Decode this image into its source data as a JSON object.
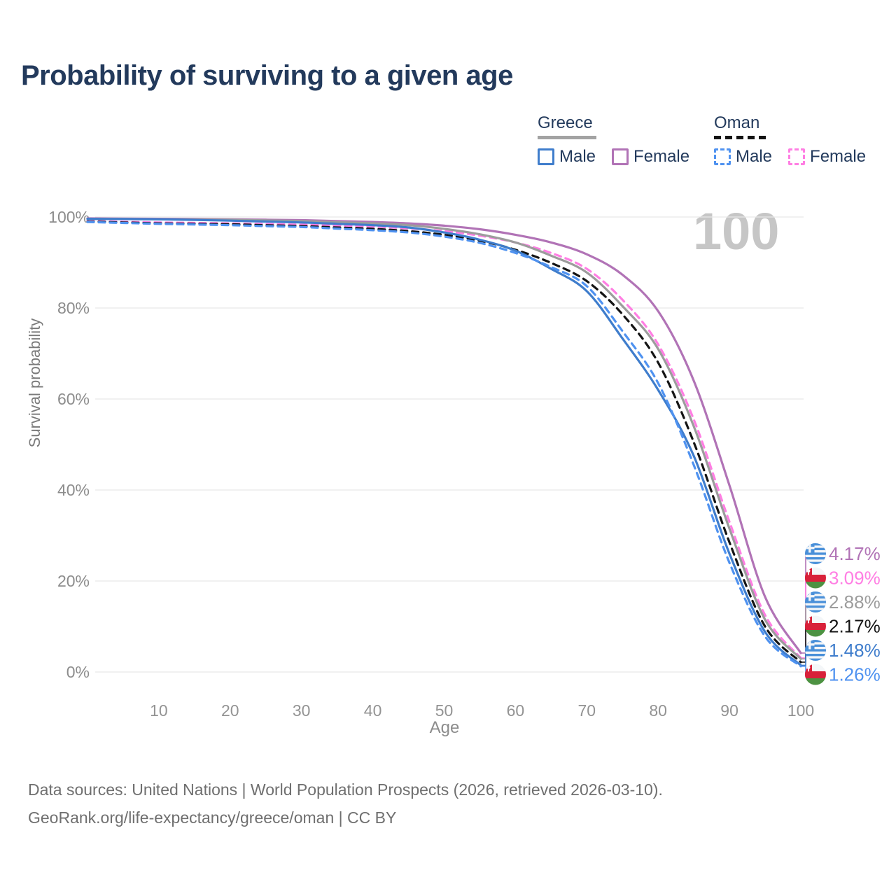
{
  "title": "Probability of surviving to a given age",
  "watermark": "100",
  "legend": {
    "groups": [
      {
        "id": "greece",
        "label": "Greece",
        "underline_style": "solid",
        "items": [
          {
            "series": "greece_male",
            "label": "Male"
          },
          {
            "series": "greece_female",
            "label": "Female"
          }
        ]
      },
      {
        "id": "oman",
        "label": "Oman",
        "underline_style": "dashed",
        "items": [
          {
            "series": "oman_male",
            "label": "Male"
          },
          {
            "series": "oman_female",
            "label": "Female"
          }
        ]
      }
    ]
  },
  "chart_data": {
    "type": "line",
    "title": "Probability of surviving to a given age",
    "xlabel": "Age",
    "ylabel": "Survival probability",
    "xlim": [
      0,
      100
    ],
    "ylim": [
      0,
      100
    ],
    "grid": "horizontal-only",
    "x_ticks": [
      10,
      20,
      30,
      40,
      50,
      60,
      70,
      80,
      90,
      100
    ],
    "y_ticks": [
      0,
      20,
      40,
      60,
      80,
      100
    ],
    "y_tick_suffix": "%",
    "legend_position": "top-right",
    "x": [
      0,
      5,
      10,
      15,
      20,
      25,
      30,
      35,
      40,
      45,
      50,
      55,
      60,
      65,
      70,
      75,
      80,
      85,
      90,
      95,
      100
    ],
    "series": [
      {
        "id": "greece_female",
        "name": "Greece Female",
        "country": "Greece",
        "sex": "Female",
        "color": "#b173b6",
        "dash": "solid",
        "flag": "greece",
        "end_label": "4.17%",
        "values": [
          99.7,
          99.65,
          99.6,
          99.55,
          99.5,
          99.4,
          99.3,
          99.1,
          98.9,
          98.6,
          98.1,
          97.3,
          96.1,
          94.4,
          91.8,
          87.3,
          79.3,
          64.0,
          41.0,
          16.5,
          4.17
        ]
      },
      {
        "id": "oman_female",
        "name": "Oman Female",
        "country": "Oman",
        "sex": "Female",
        "color": "#ff7ee3",
        "dash": "dashed",
        "flag": "oman",
        "end_label": "3.09%",
        "values": [
          99.1,
          98.95,
          98.8,
          98.7,
          98.6,
          98.45,
          98.3,
          98.1,
          97.9,
          97.5,
          96.9,
          95.9,
          94.4,
          92.1,
          88.6,
          81.8,
          72.0,
          55.5,
          33.0,
          12.5,
          3.09
        ]
      },
      {
        "id": "greece_total",
        "name": "Greece",
        "country": "Greece",
        "sex": "Both",
        "color": "#9c9c9c",
        "dash": "solid",
        "flag": "greece",
        "end_label": "2.88%",
        "values": [
          99.6,
          99.55,
          99.5,
          99.45,
          99.4,
          99.25,
          99.1,
          98.85,
          98.6,
          98.2,
          97.4,
          96.2,
          94.4,
          91.5,
          87.8,
          80.4,
          71.0,
          54.0,
          31.5,
          11.5,
          2.88
        ]
      },
      {
        "id": "oman_total",
        "name": "Oman",
        "country": "Oman",
        "sex": "Both",
        "color": "#141414",
        "dash": "dashed",
        "flag": "oman",
        "end_label": "2.17%",
        "values": [
          99.0,
          98.8,
          98.6,
          98.5,
          98.4,
          98.2,
          98.0,
          97.7,
          97.4,
          96.9,
          96.1,
          94.8,
          92.8,
          89.9,
          85.9,
          78.6,
          68.0,
          50.5,
          28.5,
          10.0,
          2.17
        ]
      },
      {
        "id": "greece_male",
        "name": "Greece Male",
        "country": "Greece",
        "sex": "Male",
        "color": "#3f7dcc",
        "dash": "solid",
        "flag": "greece",
        "end_label": "1.48%",
        "values": [
          99.6,
          99.55,
          99.5,
          99.35,
          99.2,
          99.0,
          98.8,
          98.5,
          98.2,
          97.7,
          96.6,
          95.0,
          92.6,
          88.6,
          83.7,
          73.3,
          62.0,
          47.5,
          26.0,
          8.8,
          1.48
        ]
      },
      {
        "id": "oman_male",
        "name": "Oman Male",
        "country": "Oman",
        "sex": "Male",
        "color": "#4f92f0",
        "dash": "dashed",
        "flag": "oman",
        "end_label": "1.26%",
        "values": [
          98.9,
          98.7,
          98.5,
          98.35,
          98.2,
          98.0,
          97.8,
          97.45,
          97.1,
          96.6,
          95.7,
          94.3,
          92.1,
          89.0,
          84.8,
          74.9,
          63.5,
          45.5,
          24.0,
          7.8,
          1.26
        ]
      }
    ]
  },
  "footer": {
    "line1": "Data sources: United Nations | World Population Prospects (2026, retrieved 2026-03-10).",
    "line2": "GeoRank.org/life-expectancy/greece/oman | CC BY"
  }
}
